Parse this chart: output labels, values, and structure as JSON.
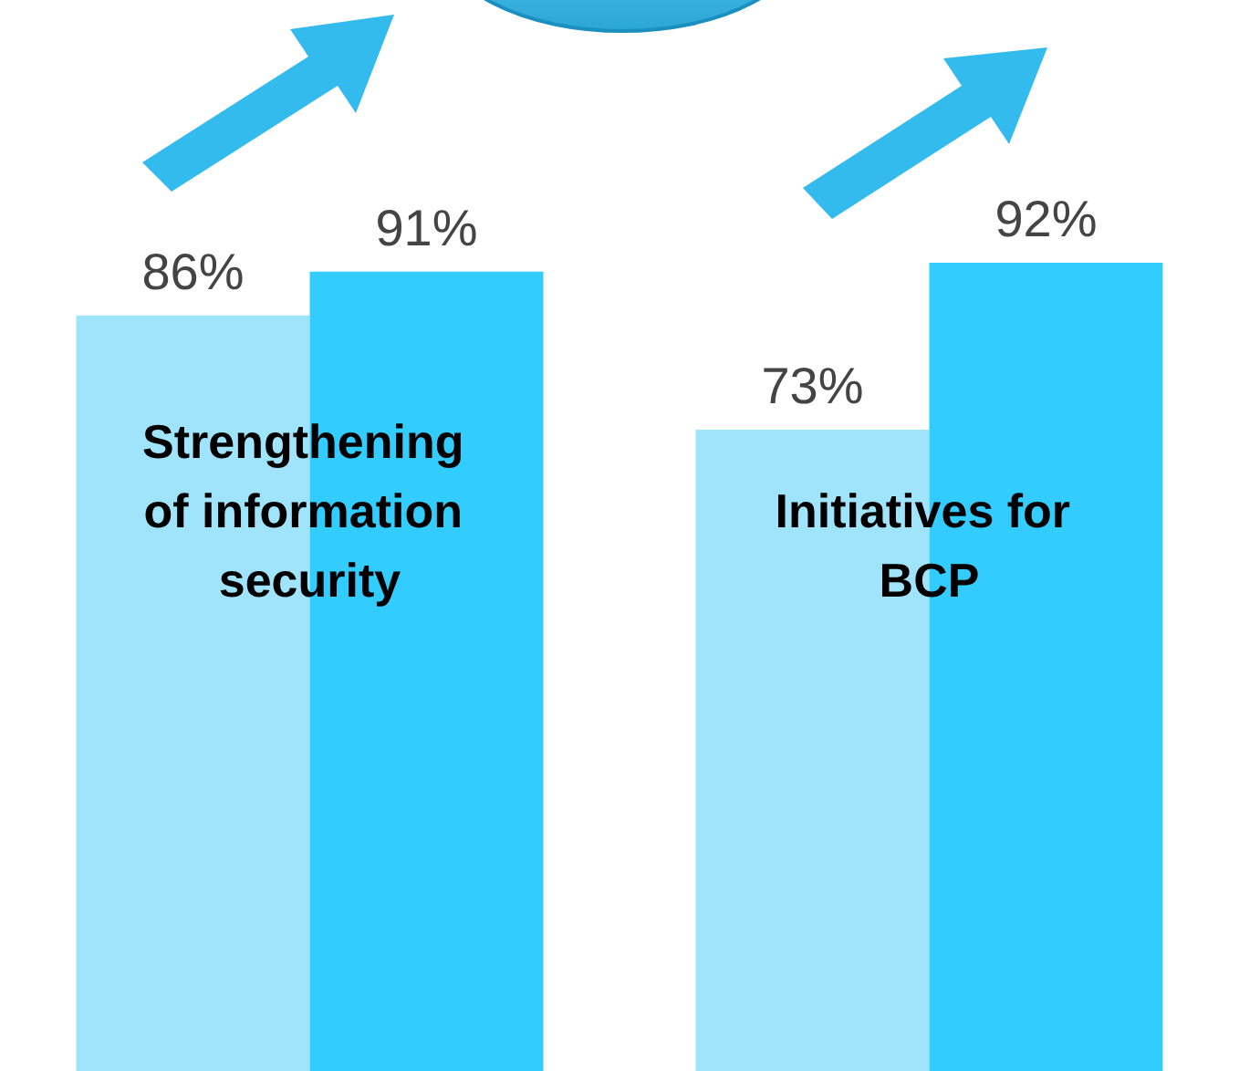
{
  "chart_data": {
    "type": "bar",
    "categories": [
      "Strengthening of information security",
      "Initiatives for BCP"
    ],
    "series": [
      {
        "color": "#a0e4fc",
        "values": [
          86,
          73
        ],
        "value_labels": [
          "86%",
          "73%"
        ]
      },
      {
        "color": "#33ccff",
        "values": [
          91,
          92
        ],
        "value_labels": [
          "91%",
          "92%"
        ]
      }
    ],
    "tick_labels": "x"
  }
}
